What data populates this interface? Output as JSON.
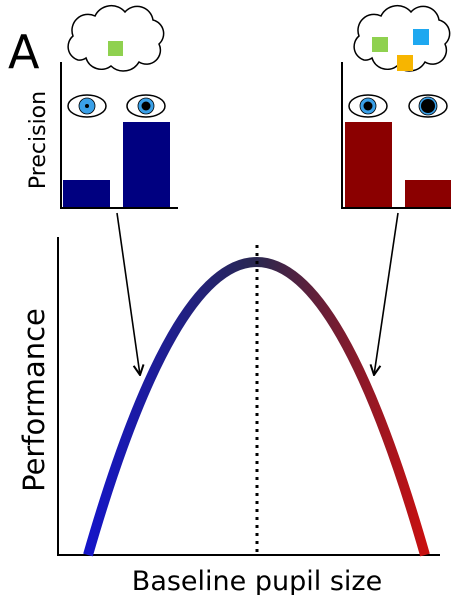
{
  "panel_label": "A",
  "inset_axis_label": "Precision",
  "main_axis_y_label": "Performance",
  "main_axis_x_label": "Baseline pupil size"
}
